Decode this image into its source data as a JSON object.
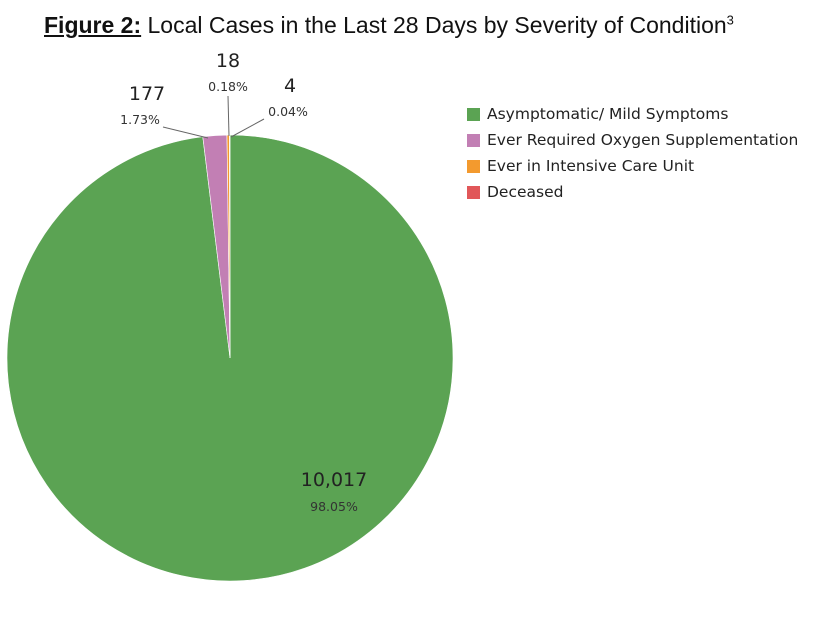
{
  "title": {
    "prefix": "Figure 2:",
    "text": " Local Cases in the Last 28 Days by Severity of Condition",
    "superscript": "3"
  },
  "chart_data": {
    "type": "pie",
    "legend_position": "right",
    "slices": [
      {
        "name": "Asymptomatic/ Mild Symptoms",
        "value": 10017,
        "value_label": "10,017",
        "percent_label": "98.05%",
        "color": "#5ba353"
      },
      {
        "name": "Ever Required Oxygen Supplementation",
        "value": 177,
        "value_label": "177",
        "percent_label": "1.73%",
        "color": "#c27fb4"
      },
      {
        "name": "Ever in Intensive Care Unit",
        "value": 18,
        "value_label": "18",
        "percent_label": "0.18%",
        "color": "#f39a2e"
      },
      {
        "name": "Deceased",
        "value": 4,
        "value_label": "4",
        "percent_label": "0.04%",
        "color": "#e15759"
      }
    ]
  }
}
